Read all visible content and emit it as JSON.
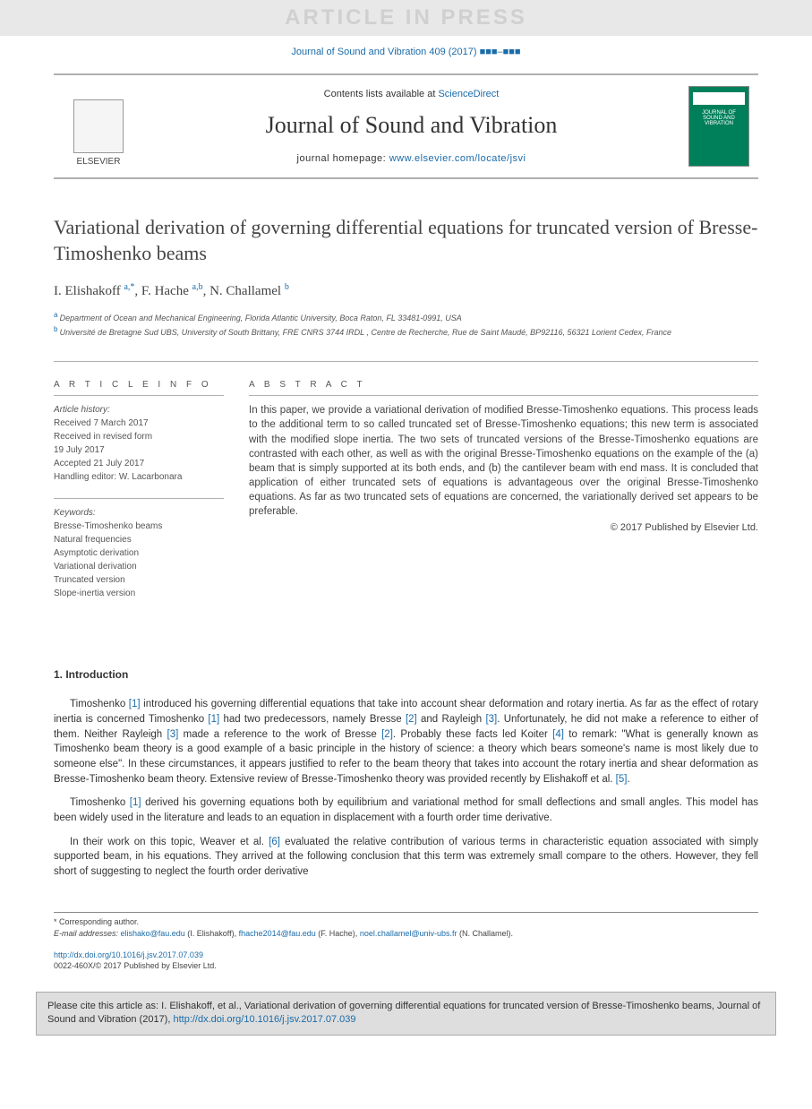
{
  "watermark": "ARTICLE IN PRESS",
  "journal_ref": "Journal of Sound and Vibration 409 (2017) ■■■–■■■",
  "header": {
    "contents_prefix": "Contents lists available at ",
    "contents_link": "ScienceDirect",
    "journal_name": "Journal of Sound and Vibration",
    "homepage_prefix": "journal homepage: ",
    "homepage_url": "www.elsevier.com/locate/jsvi",
    "elsevier_label": "ELSEVIER",
    "cover_text": "JOURNAL OF SOUND AND VIBRATION"
  },
  "title": "Variational derivation of governing differential equations for truncated version of Bresse-Timoshenko beams",
  "authors": [
    {
      "name": "I. Elishakoff",
      "aff": "a",
      "corr": true
    },
    {
      "name": "F. Hache",
      "aff": "a,b",
      "corr": false
    },
    {
      "name": "N. Challamel",
      "aff": "b",
      "corr": false
    }
  ],
  "affiliations": [
    {
      "label": "a",
      "text": "Department of Ocean and Mechanical Engineering, Florida Atlantic University, Boca Raton, FL 33481-0991, USA"
    },
    {
      "label": "b",
      "text": "Université de Bretagne Sud UBS, University of South Brittany, FRE CNRS 3744 IRDL , Centre de Recherche, Rue de Saint Maudé, BP92116, 56321 Lorient Cedex, France"
    }
  ],
  "article_info": {
    "heading": "A R T I C L E  I N F O",
    "history_label": "Article history:",
    "history": [
      "Received 7 March 2017",
      "Received in revised form",
      "19 July 2017",
      "Accepted 21 July 2017",
      "Handling editor: W. Lacarbonara"
    ],
    "keywords_label": "Keywords:",
    "keywords": [
      "Bresse-Timoshenko beams",
      "Natural frequencies",
      "Asymptotic derivation",
      "Variational derivation",
      "Truncated version",
      "Slope-inertia version"
    ]
  },
  "abstract": {
    "heading": "A B S T R A C T",
    "text": "In this paper, we provide a variational derivation of modified Bresse-Timoshenko equations. This process leads to the additional term to so called truncated set of Bresse-Timoshenko equations; this new term is associated with the modified slope inertia. The two sets of truncated versions of the Bresse-Timoshenko equations are contrasted with each other, as well as with the original Bresse-Timoshenko equations on the example of the (a) beam that is simply supported at its both ends, and (b) the cantilever beam with end mass. It is concluded that application of either truncated sets of equations is advantageous over the original Bresse-Timoshenko equations. As far as two truncated sets of equations are concerned, the variationally derived set appears to be preferable.",
    "copyright": "© 2017 Published by Elsevier Ltd."
  },
  "section1": {
    "heading": "1.  Introduction",
    "p1_parts": [
      "Timoshenko ",
      "[1]",
      " introduced his governing differential equations that take into account shear deformation and rotary inertia. As far as the effect of rotary inertia is concerned Timoshenko ",
      "[1]",
      " had two predecessors, namely Bresse ",
      "[2]",
      " and Rayleigh ",
      "[3]",
      ". Unfortunately, he did not make a reference to either of them. Neither Rayleigh ",
      "[3]",
      " made a reference to the work of Bresse ",
      "[2]",
      ". Probably these facts led Koiter ",
      "[4]",
      " to remark: \"What is generally known as Timoshenko beam theory is a good example of a basic principle in the history of science: a theory which bears someone's name is most likely due to someone else\". In these circumstances, it appears justified to refer to the beam theory that takes into account the rotary inertia and shear deformation as Bresse-Timoshenko beam theory. Extensive review of Bresse-Timoshenko theory was provided recently by Elishakoff et al. ",
      "[5]",
      "."
    ],
    "p2_parts": [
      "Timoshenko ",
      "[1]",
      " derived his governing equations both by equilibrium and variational method for small deflections and small angles. This model has been widely used in the literature and leads to an equation in displacement with a fourth order time derivative."
    ],
    "p3_parts": [
      "In their work on this topic, Weaver et al. ",
      "[6]",
      " evaluated the relative contribution of various terms in characteristic equation associated with simply supported beam, in his equations. They arrived at the following conclusion that this term was extremely small compare to the others. However, they fell short of suggesting to neglect the fourth order derivative"
    ]
  },
  "footnotes": {
    "corr": "* Corresponding author.",
    "email_label": "E-mail addresses: ",
    "emails": [
      {
        "addr": "elishako@fau.edu",
        "name": " (I. Elishakoff), "
      },
      {
        "addr": "fhache2014@fau.edu",
        "name": " (F. Hache), "
      },
      {
        "addr": "noel.challamel@univ-ubs.fr",
        "name": " (N. Challamel)."
      }
    ]
  },
  "doi": {
    "url": "http://dx.doi.org/10.1016/j.jsv.2017.07.039",
    "issn_line": "0022-460X/© 2017 Published by Elsevier Ltd."
  },
  "cite_box": {
    "prefix": "Please cite this article as: I. Elishakoff, et al., Variational derivation of governing differential equations for truncated version of Bresse-Timoshenko beams, Journal of Sound and Vibration (2017), ",
    "url": "http://dx.doi.org/10.1016/j.jsv.2017.07.039"
  },
  "colors": {
    "link": "#1a6ba8",
    "text": "#333333",
    "rule": "#b0b0b0",
    "watermark_bg": "#e8e8e8",
    "cover_bg": "#00805a",
    "cite_bg": "#dedede"
  }
}
